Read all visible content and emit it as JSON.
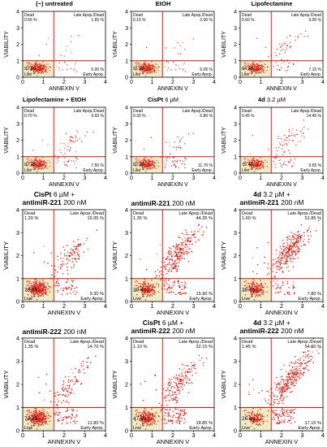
{
  "chart_data": [
    {
      "type": "scatter",
      "title_bold": "(−) untreated",
      "title_rest": "",
      "title_line2_bold": "",
      "title_line2_rest": "",
      "xlabel": "ANNEXIN V",
      "ylabel": "VIABILITY",
      "xlim": [
        0,
        4
      ],
      "ylim": [
        0,
        4
      ],
      "xgate": 1.5,
      "ygate": 1,
      "quadrants": {
        "dead_label": "Dead",
        "dead": "0.55 %",
        "late_label": "Late Apop./Dead",
        "late": "1.65 %",
        "live_label": "Live",
        "live": "92.80",
        "early_label": "Early Apop.",
        "early": "5.00 %"
      },
      "cloud": {
        "live_n": 260,
        "early_n": 16,
        "late_n": 8,
        "late_cx": 2.2,
        "late_cy": 1.6,
        "late_spread": 0.45,
        "dead_n": 3,
        "seed": 11
      }
    },
    {
      "type": "scatter",
      "title_bold": "EtOH",
      "title_rest": "",
      "title_line2_bold": "",
      "title_line2_rest": "",
      "xlabel": "ANNEXIN V",
      "ylabel": "VIABILITY",
      "xlim": [
        0,
        4
      ],
      "ylim": [
        0,
        4
      ],
      "xgate": 1.5,
      "ygate": 1,
      "quadrants": {
        "dead_label": "Dead",
        "dead": "0.15 %",
        "late_label": "Late Apop./Dead",
        "late": "2.00 %",
        "live_label": "Live",
        "live": "91.90",
        "early_label": "Early Apop.",
        "early": "6.05 %"
      },
      "cloud": {
        "live_n": 260,
        "early_n": 18,
        "late_n": 9,
        "late_cx": 2.2,
        "late_cy": 1.6,
        "late_spread": 0.45,
        "dead_n": 1,
        "seed": 23
      }
    },
    {
      "type": "scatter",
      "title_bold": "Lipofectamine",
      "title_rest": "",
      "title_line2_bold": "",
      "title_line2_rest": "",
      "xlabel": "ANNEXIN V",
      "ylabel": "VIABILITY",
      "xlim": [
        0,
        4
      ],
      "ylim": [
        0,
        4
      ],
      "xgate": 1.5,
      "ygate": 1,
      "quadrants": {
        "dead_label": "Dead",
        "dead": "0.60 %",
        "late_label": "Late Apop./Dead",
        "late": "9.05 %",
        "live_label": "Live",
        "live": "84.20",
        "early_label": "Early Apop.",
        "early": "7.15 %"
      },
      "cloud": {
        "live_n": 240,
        "early_n": 20,
        "late_n": 40,
        "late_cx": 2.3,
        "late_cy": 1.9,
        "late_spread": 0.5,
        "dead_n": 3,
        "seed": 37
      }
    },
    {
      "type": "scatter",
      "title_bold": "Lipofectamine + EtOH",
      "title_rest": "",
      "title_line2_bold": "",
      "title_line2_rest": "",
      "xlabel": "ANNEXIN V",
      "ylabel": "VIABILITY",
      "xlim": [
        0,
        4
      ],
      "ylim": [
        0,
        4
      ],
      "xgate": 1.5,
      "ygate": 1,
      "quadrants": {
        "dead_label": "Dead",
        "dead": "0.70 %",
        "late_label": "Late Apop./Dead",
        "late": "9.65 %",
        "live_label": "Live",
        "live": "82.15",
        "early_label": "Early Apop.",
        "early": "7.50 %"
      },
      "cloud": {
        "live_n": 235,
        "early_n": 22,
        "late_n": 42,
        "late_cx": 2.3,
        "late_cy": 1.9,
        "late_spread": 0.5,
        "dead_n": 3,
        "seed": 41
      }
    },
    {
      "type": "scatter",
      "title_bold": "CisPt",
      "title_rest": " 6 µM",
      "title_line2_bold": "",
      "title_line2_rest": "",
      "xlabel": "ANNEXIN V",
      "ylabel": "VIABILITY",
      "xlim": [
        0,
        4
      ],
      "ylim": [
        0,
        4
      ],
      "xgate": 1.5,
      "ygate": 1,
      "quadrants": {
        "dead_label": "Dead",
        "dead": "0.30 %",
        "late_label": "Late Apop./Dead",
        "late": "5.80 %",
        "live_label": "Live",
        "live": "82.20",
        "early_label": "Early Apop.",
        "early": "11.70 %"
      },
      "cloud": {
        "live_n": 235,
        "early_n": 34,
        "late_n": 25,
        "late_cx": 2.2,
        "late_cy": 1.7,
        "late_spread": 0.45,
        "dead_n": 2,
        "seed": 53
      }
    },
    {
      "type": "scatter",
      "title_bold": "4d",
      "title_rest": " 3.2 µM",
      "title_line2_bold": "",
      "title_line2_rest": "",
      "xlabel": "ANNEXIN V",
      "ylabel": "VIABILITY",
      "xlim": [
        0,
        4
      ],
      "ylim": [
        0,
        4
      ],
      "xgate": 1.5,
      "ygate": 1,
      "quadrants": {
        "dead_label": "Dead",
        "dead": "0.45 %",
        "late_label": "Late Apop./Dead",
        "late": "14.45 %",
        "live_label": "Live",
        "live": "75.45",
        "early_label": "Early Apop.",
        "early": "9.65 %"
      },
      "cloud": {
        "live_n": 220,
        "early_n": 28,
        "late_n": 60,
        "late_cx": 2.4,
        "late_cy": 2.0,
        "late_spread": 0.55,
        "dead_n": 2,
        "seed": 67
      }
    },
    {
      "type": "scatter",
      "title_bold": "CisPt",
      "title_rest": " 6 µM +",
      "title_line2_bold": "antimiR-221",
      "title_line2_rest": " 200 nM",
      "xlabel": "ANNEXIN V",
      "ylabel": "VIABILITY",
      "xlim": [
        0,
        4
      ],
      "ylim": [
        0,
        4
      ],
      "xgate": 1.5,
      "ygate": 1,
      "quadrants": {
        "dead_label": "Dead",
        "dead": "1.20 %",
        "late_label": "Late Apop./Dead",
        "late": "15.95 %",
        "live_label": "Live",
        "live": "73.55",
        "early_label": "Early Apop.",
        "early": "9.30 %"
      },
      "cloud": {
        "live_n": 330,
        "early_n": 45,
        "late_n": 110,
        "late_cx": 2.3,
        "late_cy": 1.9,
        "late_spread": 0.5,
        "dead_n": 6,
        "seed": 71
      }
    },
    {
      "type": "scatter",
      "title_bold": "antimiR-221",
      "title_rest": " 200 nM",
      "title_line2_bold": "",
      "title_line2_rest": "",
      "xlabel": "ANNEXIN V",
      "ylabel": "VIABILITY",
      "xlim": [
        0,
        4
      ],
      "ylim": [
        0,
        4
      ],
      "xgate": 1.5,
      "ygate": 1,
      "quadrants": {
        "dead_label": "Dead",
        "dead": "1.35 %",
        "late_label": "Late Apop./Dead",
        "late": "44.35 %",
        "live_label": "Live",
        "live": "38.40",
        "early_label": "Early Apop.",
        "early": "15.90 %"
      },
      "cloud": {
        "live_n": 200,
        "early_n": 70,
        "late_n": 260,
        "late_cx": 2.3,
        "late_cy": 2.1,
        "late_spread": 0.55,
        "dead_n": 7,
        "seed": 83
      }
    },
    {
      "type": "scatter",
      "title_bold": "4d",
      "title_rest": " 3.2 µM +",
      "title_line2_bold": "antimiR-221",
      "title_line2_rest": " 200 nM",
      "xlabel": "ANNEXIN V",
      "ylabel": "VIABILITY",
      "xlim": [
        0,
        4
      ],
      "ylim": [
        0,
        4
      ],
      "xgate": 1.5,
      "ygate": 1,
      "quadrants": {
        "dead_label": "Dead",
        "dead": "1.60 %",
        "late_label": "Late Apop./Dead",
        "late": "51.85 %",
        "live_label": "Live",
        "live": "38.75",
        "early_label": "Early Apop.",
        "early": "7.80 %"
      },
      "cloud": {
        "live_n": 200,
        "early_n": 40,
        "late_n": 290,
        "late_cx": 2.4,
        "late_cy": 2.2,
        "late_spread": 0.55,
        "dead_n": 8,
        "seed": 97
      }
    },
    {
      "type": "scatter",
      "title_bold": "antimiR-222",
      "title_rest": " 200 nM",
      "title_line2_bold": "",
      "title_line2_rest": "",
      "xlabel": "ANNEXIN V",
      "ylabel": "VIABILITY",
      "xlim": [
        0,
        4
      ],
      "ylim": [
        0,
        4
      ],
      "xgate": 1.5,
      "ygate": 1,
      "quadrants": {
        "dead_label": "Dead",
        "dead": "1.35 %",
        "late_label": "Late Apop./Dead",
        "late": "14.70 %",
        "live_label": "Live",
        "live": "72.15",
        "early_label": "Early Apop.",
        "early": "11.80 %"
      },
      "cloud": {
        "live_n": 330,
        "early_n": 55,
        "late_n": 100,
        "late_cx": 2.3,
        "late_cy": 2.0,
        "late_spread": 0.55,
        "dead_n": 7,
        "seed": 101
      }
    },
    {
      "type": "scatter",
      "title_bold": "CisPt",
      "title_rest": " 6 µM +",
      "title_line2_bold": "antimiR-222",
      "title_line2_rest": " 200 nM",
      "xlabel": "ANNEXIN V",
      "ylabel": "VIABILITY",
      "xlim": [
        0,
        4
      ],
      "ylim": [
        0,
        4
      ],
      "xgate": 1.5,
      "ygate": 1,
      "quadrants": {
        "dead_label": "Dead",
        "dead": "1.10 %",
        "late_label": "Late Apop./Dead",
        "late": "32.15 %",
        "live_label": "Live",
        "live": "47.90",
        "early_label": "Early Apop.",
        "early": "18.85 %"
      },
      "cloud": {
        "live_n": 240,
        "early_n": 85,
        "late_n": 180,
        "late_cx": 2.3,
        "late_cy": 2.0,
        "late_spread": 0.55,
        "dead_n": 6,
        "seed": 113
      }
    },
    {
      "type": "scatter",
      "title_bold": "4d",
      "title_rest": " 3.2 µM +",
      "title_line2_bold": "antimiR-222",
      "title_line2_rest": " 200 nM",
      "xlabel": "ANNEXIN V",
      "ylabel": "VIABILITY",
      "xlim": [
        0,
        4
      ],
      "ylim": [
        0,
        4
      ],
      "xgate": 1.5,
      "ygate": 1,
      "quadrants": {
        "dead_label": "Dead",
        "dead": "1.45 %",
        "late_label": "Late Apop./Dead",
        "late": "54.60 %",
        "live_label": "Live",
        "live": "26.80",
        "early_label": "Early Apop.",
        "early": "17.15 %"
      },
      "cloud": {
        "live_n": 150,
        "early_n": 85,
        "late_n": 320,
        "late_cx": 2.4,
        "late_cy": 2.2,
        "late_spread": 0.6,
        "dead_n": 8,
        "seed": 127
      }
    }
  ],
  "colors": {
    "dot": "#d42018",
    "dot_light": "#ee6a5a",
    "gate": "#cc1111",
    "live_fill": "#eeecc4",
    "axis": "#000000"
  }
}
